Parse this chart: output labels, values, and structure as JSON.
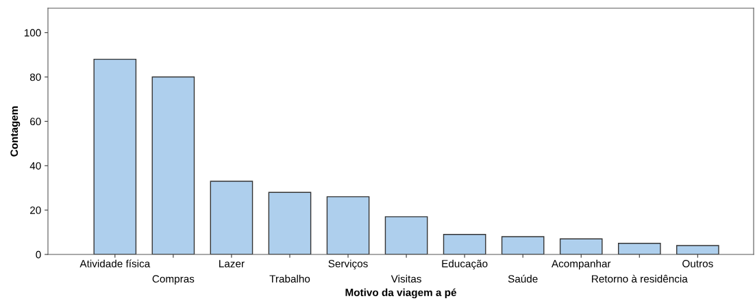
{
  "chart_data": {
    "type": "bar",
    "xlabel": "Motivo da viagem a pé",
    "ylabel": "Contagem",
    "categories": [
      "Atividade física",
      "Compras",
      "Lazer",
      "Trabalho",
      "Serviços",
      "Visitas",
      "Educação",
      "Saúde",
      "Acompanhar",
      "Retorno à residência",
      "Outros"
    ],
    "values": [
      88,
      80,
      33,
      28,
      26,
      17,
      9,
      8,
      7,
      5,
      4
    ],
    "color": "#aecfed",
    "ylim": [
      0,
      111
    ],
    "yticks": [
      0,
      20,
      40,
      60,
      80,
      100
    ],
    "grid": false
  }
}
